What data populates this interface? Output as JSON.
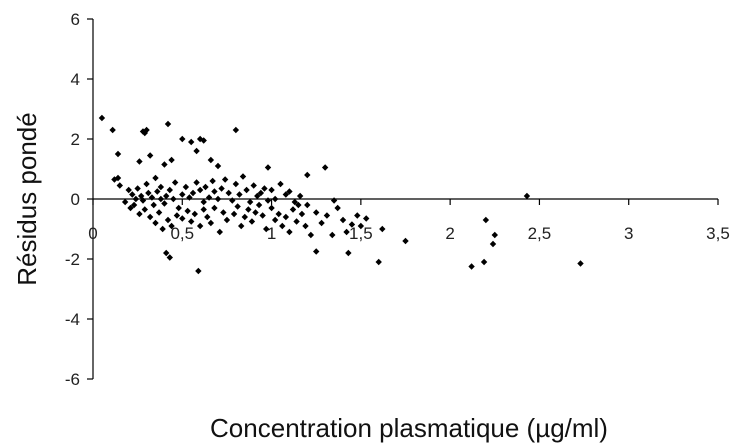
{
  "chart_data": {
    "type": "scatter",
    "title": "",
    "xlabel": "Concentration plasmatique (µg/ml)",
    "ylabel": "Résidus pondé",
    "xlim": [
      0,
      3.5
    ],
    "ylim": [
      -6,
      6
    ],
    "x_ticks": [
      {
        "value": 0,
        "label": "0"
      },
      {
        "value": 0.5,
        "label": "0,5"
      },
      {
        "value": 1,
        "label": "1"
      },
      {
        "value": 1.5,
        "label": "1,5"
      },
      {
        "value": 2,
        "label": "2"
      },
      {
        "value": 2.5,
        "label": "2,5"
      },
      {
        "value": 3,
        "label": "3"
      },
      {
        "value": 3.5,
        "label": "3,5"
      }
    ],
    "y_ticks": [
      {
        "value": 6,
        "label": "6"
      },
      {
        "value": 4,
        "label": "4"
      },
      {
        "value": 2,
        "label": "2"
      },
      {
        "value": 0,
        "label": "0"
      },
      {
        "value": -2,
        "label": "-2"
      },
      {
        "value": -4,
        "label": "-4"
      },
      {
        "value": -6,
        "label": "-6"
      }
    ],
    "grid": false,
    "legend": "none",
    "marker": "diamond",
    "marker_color": "#000000",
    "points": [
      [
        0.05,
        2.7
      ],
      [
        0.11,
        2.3
      ],
      [
        0.28,
        2.25
      ],
      [
        0.29,
        2.2
      ],
      [
        0.3,
        2.3
      ],
      [
        0.42,
        2.5
      ],
      [
        0.5,
        2.0
      ],
      [
        0.55,
        1.9
      ],
      [
        0.6,
        2.0
      ],
      [
        0.62,
        1.95
      ],
      [
        0.8,
        2.3
      ],
      [
        0.14,
        1.5
      ],
      [
        0.26,
        1.25
      ],
      [
        0.32,
        1.45
      ],
      [
        0.4,
        1.15
      ],
      [
        0.44,
        1.3
      ],
      [
        0.58,
        1.6
      ],
      [
        0.66,
        1.3
      ],
      [
        0.7,
        1.1
      ],
      [
        0.98,
        1.05
      ],
      [
        1.3,
        1.05
      ],
      [
        0.12,
        0.65
      ],
      [
        0.14,
        0.7
      ],
      [
        0.15,
        0.45
      ],
      [
        0.2,
        0.3
      ],
      [
        0.22,
        0.15
      ],
      [
        0.24,
        0.0
      ],
      [
        0.25,
        0.35
      ],
      [
        0.27,
        0.1
      ],
      [
        0.28,
        -0.05
      ],
      [
        0.3,
        0.5
      ],
      [
        0.31,
        0.2
      ],
      [
        0.33,
        0.05
      ],
      [
        0.34,
        -0.2
      ],
      [
        0.35,
        0.7
      ],
      [
        0.36,
        0.25
      ],
      [
        0.38,
        0.0
      ],
      [
        0.38,
        0.4
      ],
      [
        0.4,
        -0.15
      ],
      [
        0.41,
        0.1
      ],
      [
        0.43,
        0.3
      ],
      [
        0.45,
        0.0
      ],
      [
        0.46,
        0.55
      ],
      [
        0.48,
        -0.3
      ],
      [
        0.5,
        0.15
      ],
      [
        0.52,
        0.4
      ],
      [
        0.54,
        0.05
      ],
      [
        0.56,
        0.2
      ],
      [
        0.58,
        0.55
      ],
      [
        0.6,
        0.3
      ],
      [
        0.62,
        -0.1
      ],
      [
        0.63,
        0.4
      ],
      [
        0.65,
        0.05
      ],
      [
        0.67,
        0.6
      ],
      [
        0.68,
        0.25
      ],
      [
        0.7,
        0.0
      ],
      [
        0.72,
        0.35
      ],
      [
        0.74,
        0.65
      ],
      [
        0.76,
        0.2
      ],
      [
        0.78,
        -0.05
      ],
      [
        0.8,
        0.5
      ],
      [
        0.82,
        0.15
      ],
      [
        0.84,
        0.75
      ],
      [
        0.86,
        0.3
      ],
      [
        0.88,
        -0.1
      ],
      [
        0.9,
        0.45
      ],
      [
        0.92,
        0.1
      ],
      [
        0.94,
        0.2
      ],
      [
        0.96,
        0.35
      ],
      [
        0.98,
        -0.05
      ],
      [
        1.0,
        0.3
      ],
      [
        1.02,
        0.0
      ],
      [
        1.05,
        0.5
      ],
      [
        1.08,
        0.15
      ],
      [
        1.1,
        0.25
      ],
      [
        1.13,
        -0.1
      ],
      [
        1.16,
        0.1
      ],
      [
        1.2,
        0.8
      ],
      [
        0.18,
        -0.1
      ],
      [
        0.21,
        -0.3
      ],
      [
        0.23,
        -0.2
      ],
      [
        0.26,
        -0.5
      ],
      [
        0.29,
        -0.35
      ],
      [
        0.32,
        -0.6
      ],
      [
        0.35,
        -0.8
      ],
      [
        0.37,
        -0.45
      ],
      [
        0.39,
        -1.0
      ],
      [
        0.42,
        -0.7
      ],
      [
        0.44,
        -0.9
      ],
      [
        0.47,
        -0.55
      ],
      [
        0.5,
        -0.65
      ],
      [
        0.53,
        -0.4
      ],
      [
        0.55,
        -0.75
      ],
      [
        0.57,
        -0.5
      ],
      [
        0.6,
        -0.9
      ],
      [
        0.62,
        -0.35
      ],
      [
        0.64,
        -0.6
      ],
      [
        0.66,
        -0.8
      ],
      [
        0.68,
        -0.3
      ],
      [
        0.71,
        -1.1
      ],
      [
        0.73,
        -0.45
      ],
      [
        0.75,
        -0.7
      ],
      [
        0.79,
        -0.5
      ],
      [
        0.81,
        -0.25
      ],
      [
        0.83,
        -0.9
      ],
      [
        0.85,
        -0.6
      ],
      [
        0.87,
        -0.35
      ],
      [
        0.89,
        -0.75
      ],
      [
        0.91,
        -0.45
      ],
      [
        0.93,
        -0.2
      ],
      [
        0.95,
        -0.55
      ],
      [
        0.97,
        -1.0
      ],
      [
        1.0,
        -0.3
      ],
      [
        1.02,
        -0.7
      ],
      [
        1.04,
        -0.5
      ],
      [
        1.06,
        -0.9
      ],
      [
        1.08,
        -0.6
      ],
      [
        1.1,
        -1.1
      ],
      [
        1.12,
        -0.35
      ],
      [
        1.14,
        -0.75
      ],
      [
        1.17,
        -0.5
      ],
      [
        1.19,
        -0.9
      ],
      [
        1.22,
        -1.2
      ],
      [
        1.25,
        -0.45
      ],
      [
        1.28,
        -0.8
      ],
      [
        1.31,
        -0.55
      ],
      [
        1.34,
        -1.2
      ],
      [
        1.37,
        -0.3
      ],
      [
        1.4,
        -0.7
      ],
      [
        1.42,
        -1.1
      ],
      [
        1.45,
        -0.85
      ],
      [
        1.48,
        -0.55
      ],
      [
        1.5,
        -0.9
      ],
      [
        1.53,
        -0.65
      ],
      [
        1.2,
        -0.2
      ],
      [
        1.15,
        -0.2
      ],
      [
        1.35,
        -0.05
      ],
      [
        0.41,
        -1.8
      ],
      [
        0.43,
        -1.95
      ],
      [
        0.59,
        -2.4
      ],
      [
        1.25,
        -1.75
      ],
      [
        1.43,
        -1.8
      ],
      [
        1.6,
        -2.1
      ],
      [
        1.62,
        -1.0
      ],
      [
        1.75,
        -1.4
      ],
      [
        2.12,
        -2.25
      ],
      [
        2.19,
        -2.1
      ],
      [
        2.2,
        -0.7
      ],
      [
        2.24,
        -1.5
      ],
      [
        2.25,
        -1.2
      ],
      [
        2.43,
        0.1
      ],
      [
        2.73,
        -2.15
      ]
    ]
  }
}
